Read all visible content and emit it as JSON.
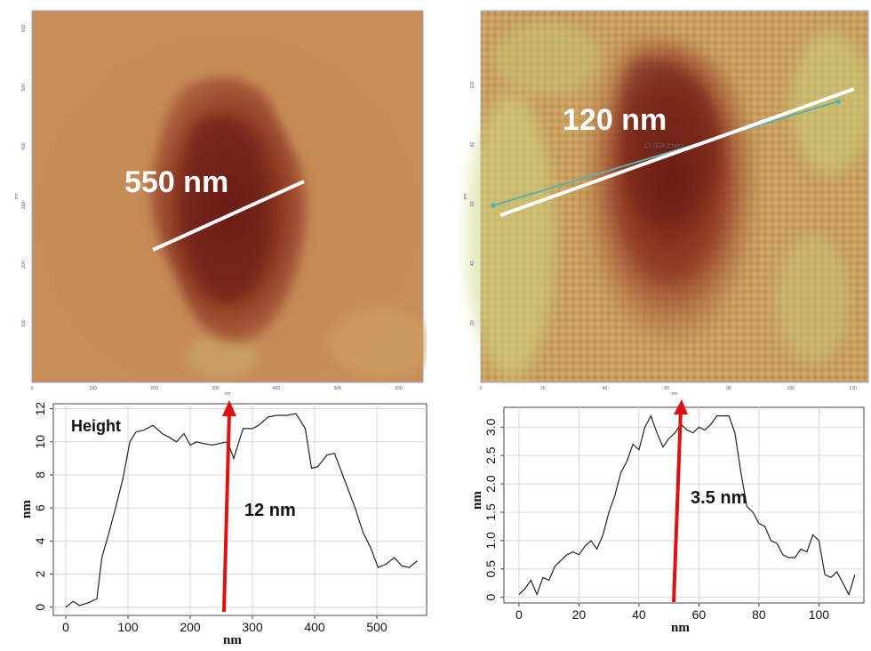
{
  "afm_left": {
    "annotation": "550 nm",
    "x_ticks": [
      "0",
      "100",
      "200",
      "300",
      "400",
      "500",
      "600"
    ],
    "y_ticks": [
      "100",
      "200",
      "300",
      "400",
      "500",
      "600"
    ],
    "x_unit": "nm",
    "y_unit": "nm"
  },
  "afm_right": {
    "annotation": "120 nm",
    "small_label": "L1 (114.2 nm)",
    "x_ticks": [
      "0",
      "20",
      "40",
      "60",
      "80",
      "100",
      "120"
    ],
    "y_ticks": [
      "20",
      "40",
      "60",
      "80",
      "100"
    ],
    "x_unit": "nm",
    "y_unit": "nm"
  },
  "chart_data": [
    {
      "type": "line",
      "title": "",
      "label_in_plot": "Height",
      "annotation": "12 nm",
      "xlabel": "nm",
      "ylabel": "nm",
      "xlim": [
        -20,
        580
      ],
      "ylim": [
        -0.5,
        12.3
      ],
      "x_ticks": [
        0,
        100,
        200,
        300,
        400,
        500
      ],
      "y_ticks": [
        0,
        2,
        4,
        6,
        8,
        10,
        12
      ],
      "x": [
        0,
        12,
        22,
        35,
        50,
        58,
        68,
        80,
        92,
        103,
        113,
        125,
        140,
        155,
        165,
        178,
        190,
        200,
        210,
        220,
        235,
        248,
        260,
        270,
        285,
        300,
        310,
        325,
        340,
        355,
        370,
        385,
        395,
        405,
        420,
        432,
        445,
        455,
        465,
        478,
        490,
        502,
        515,
        528,
        540,
        552,
        565
      ],
      "y": [
        0.0,
        0.35,
        0.1,
        0.25,
        0.5,
        3.0,
        4.3,
        6.0,
        7.8,
        10.0,
        10.6,
        10.7,
        11.0,
        10.5,
        10.3,
        10.0,
        10.5,
        9.8,
        10.0,
        9.9,
        9.8,
        9.9,
        10.0,
        9.0,
        10.8,
        10.8,
        11.0,
        11.5,
        11.6,
        11.6,
        11.7,
        10.8,
        8.4,
        8.5,
        9.2,
        9.3,
        8.0,
        7.0,
        6.0,
        4.5,
        3.6,
        2.4,
        2.6,
        3.0,
        2.5,
        2.4,
        2.8
      ]
    },
    {
      "type": "line",
      "title": "",
      "annotation": "3.5 nm",
      "xlabel": "nm",
      "ylabel": "nm",
      "xlim": [
        -5,
        115
      ],
      "ylim": [
        -0.1,
        3.35
      ],
      "x_ticks": [
        0,
        20,
        40,
        60,
        80,
        100
      ],
      "y_ticks": [
        0,
        0.5,
        1.0,
        1.5,
        2.0,
        2.5,
        3.0
      ],
      "y_tick_labels": [
        "0",
        "0.5",
        "1.0",
        "1.5",
        "2.0",
        "2.5",
        "3.0"
      ],
      "x": [
        0,
        2,
        4,
        6,
        8,
        10,
        12,
        14,
        16,
        18,
        20,
        22,
        24,
        26,
        28,
        30,
        32,
        34,
        36,
        38,
        40,
        42,
        44,
        46,
        48,
        50,
        52,
        54,
        56,
        58,
        60,
        62,
        64,
        66,
        68,
        70,
        72,
        74,
        76,
        78,
        80,
        82,
        84,
        86,
        88,
        90,
        92,
        94,
        96,
        98,
        100,
        102,
        104,
        106,
        108,
        110,
        112
      ],
      "y": [
        0.05,
        0.15,
        0.3,
        0.05,
        0.35,
        0.3,
        0.55,
        0.65,
        0.75,
        0.8,
        0.75,
        0.9,
        1.0,
        0.85,
        1.1,
        1.5,
        1.8,
        2.2,
        2.4,
        2.7,
        2.6,
        3.0,
        3.2,
        2.9,
        2.65,
        2.8,
        2.9,
        3.05,
        2.95,
        2.9,
        3.0,
        2.95,
        3.05,
        3.2,
        3.2,
        3.2,
        2.9,
        2.2,
        1.6,
        1.5,
        1.3,
        1.25,
        1.0,
        0.95,
        0.75,
        0.7,
        0.7,
        0.85,
        0.8,
        1.1,
        1.0,
        0.4,
        0.35,
        0.45,
        0.25,
        0.05,
        0.4
      ]
    }
  ],
  "colors": {
    "arrow": "#dd1111",
    "line": "#222222",
    "grid": "#d8d8d8"
  }
}
